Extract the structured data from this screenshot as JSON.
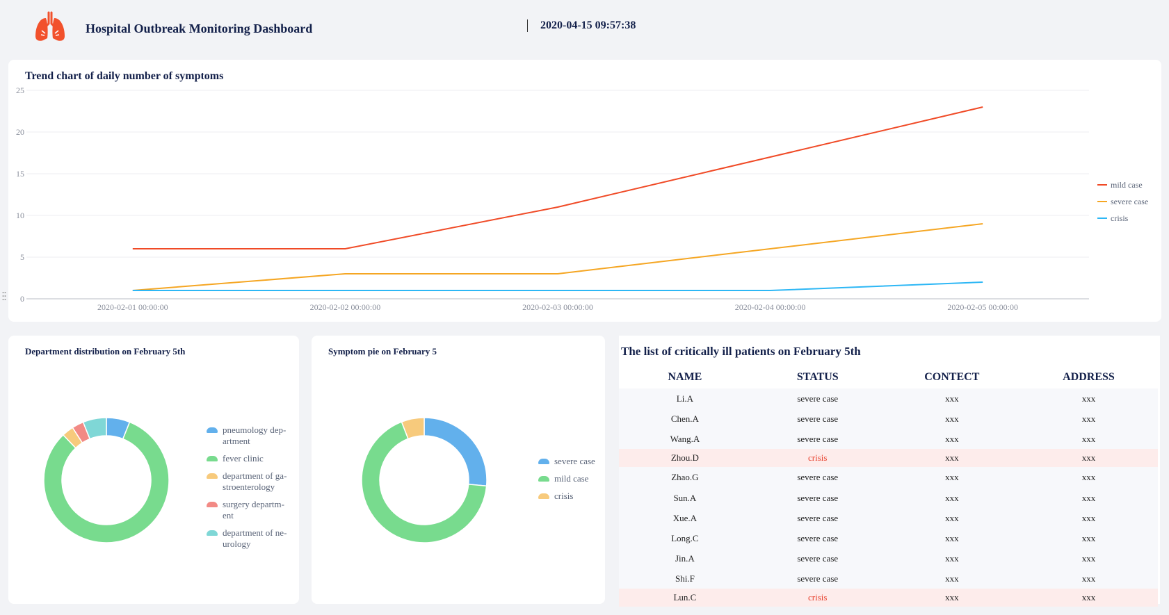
{
  "header": {
    "title": "Hospital Outbreak Monitoring Dashboard",
    "datetime": "2020-04-15 09:57:38",
    "logo_icon": "lungs-icon",
    "logo_color": "#f2512c"
  },
  "trend": {
    "title": "Trend chart of daily number of symptoms"
  },
  "department": {
    "title": "Department distribution on February 5th"
  },
  "symptom": {
    "title": "Symptom pie on February 5"
  },
  "patients": {
    "title": "The list of critically ill patients on February 5th",
    "columns": [
      "NAME",
      "STATUS",
      "CONTECT",
      "ADDRESS"
    ],
    "rows": [
      {
        "name": "Li.A",
        "status": "severe case",
        "contact": "xxx",
        "address": "xxx",
        "critical": false
      },
      {
        "name": "Chen.A",
        "status": "severe case",
        "contact": "xxx",
        "address": "xxx",
        "critical": false
      },
      {
        "name": "Wang.A",
        "status": "severe case",
        "contact": "xxx",
        "address": "xxx",
        "critical": false
      },
      {
        "name": "Zhou.D",
        "status": "crisis",
        "contact": "xxx",
        "address": "xxx",
        "critical": true
      },
      {
        "name": "Zhao.G",
        "status": "severe case",
        "contact": "xxx",
        "address": "xxx",
        "critical": false
      },
      {
        "name": "Sun.A",
        "status": "severe case",
        "contact": "xxx",
        "address": "xxx",
        "critical": false
      },
      {
        "name": "Xue.A",
        "status": "severe case",
        "contact": "xxx",
        "address": "xxx",
        "critical": false
      },
      {
        "name": "Long.C",
        "status": "severe case",
        "contact": "xxx",
        "address": "xxx",
        "critical": false
      },
      {
        "name": "Jin.A",
        "status": "severe case",
        "contact": "xxx",
        "address": "xxx",
        "critical": false
      },
      {
        "name": "Shi.F",
        "status": "severe case",
        "contact": "xxx",
        "address": "xxx",
        "critical": false
      },
      {
        "name": "Lun.C",
        "status": "crisis",
        "contact": "xxx",
        "address": "xxx",
        "critical": true
      }
    ]
  },
  "chart_data": [
    {
      "type": "line",
      "title": "Trend chart of daily number of symptoms",
      "x": [
        "2020-02-01 00:00:00",
        "2020-02-02 00:00:00",
        "2020-02-03 00:00:00",
        "2020-02-04 00:00:00",
        "2020-02-05 00:00:00"
      ],
      "ylim": [
        0,
        25
      ],
      "yticks": [
        0,
        5,
        10,
        15,
        20,
        25
      ],
      "grid": true,
      "legend_position": "right",
      "series": [
        {
          "name": "mild case",
          "color": "#f04a26",
          "values": [
            6,
            6,
            11,
            17,
            23
          ]
        },
        {
          "name": "severe case",
          "color": "#f5a623",
          "values": [
            1,
            3,
            3,
            6,
            9
          ]
        },
        {
          "name": "crisis",
          "color": "#2db7f5",
          "values": [
            1,
            1,
            1,
            1,
            2
          ]
        }
      ]
    },
    {
      "type": "pie",
      "title": "Department distribution on February 5th",
      "legend_position": "right",
      "labels": [
        "pneumology dep-artment",
        "fever clinic",
        "department of ga-stroenterology",
        "surgery departm-ent",
        "department of ne-urology"
      ],
      "values": [
        2,
        27,
        1,
        1,
        2
      ],
      "colors": [
        "#62b0ec",
        "#78db8e",
        "#f7ca7c",
        "#f28a85",
        "#7fd7d6"
      ]
    },
    {
      "type": "pie",
      "title": "Symptom pie on February 5",
      "legend_position": "right",
      "labels": [
        "severe case",
        "mild case",
        "crisis"
      ],
      "values": [
        9,
        23,
        2
      ],
      "colors": [
        "#62b0ec",
        "#78db8e",
        "#f7ca7c"
      ]
    }
  ]
}
